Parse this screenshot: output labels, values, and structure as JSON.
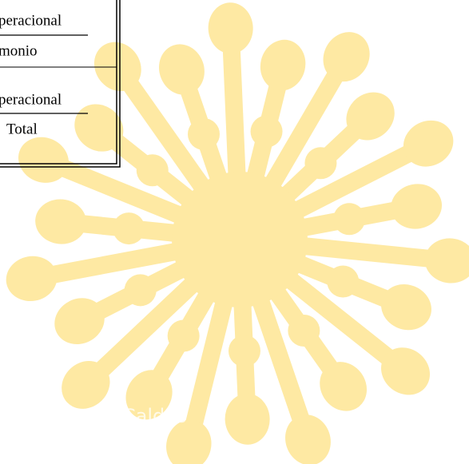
{
  "table": {
    "rows": [
      [
        "peracional",
        "monio"
      ],
      [
        "peracional",
        "Total"
      ]
    ]
  },
  "watermark": "es Caldas"
}
